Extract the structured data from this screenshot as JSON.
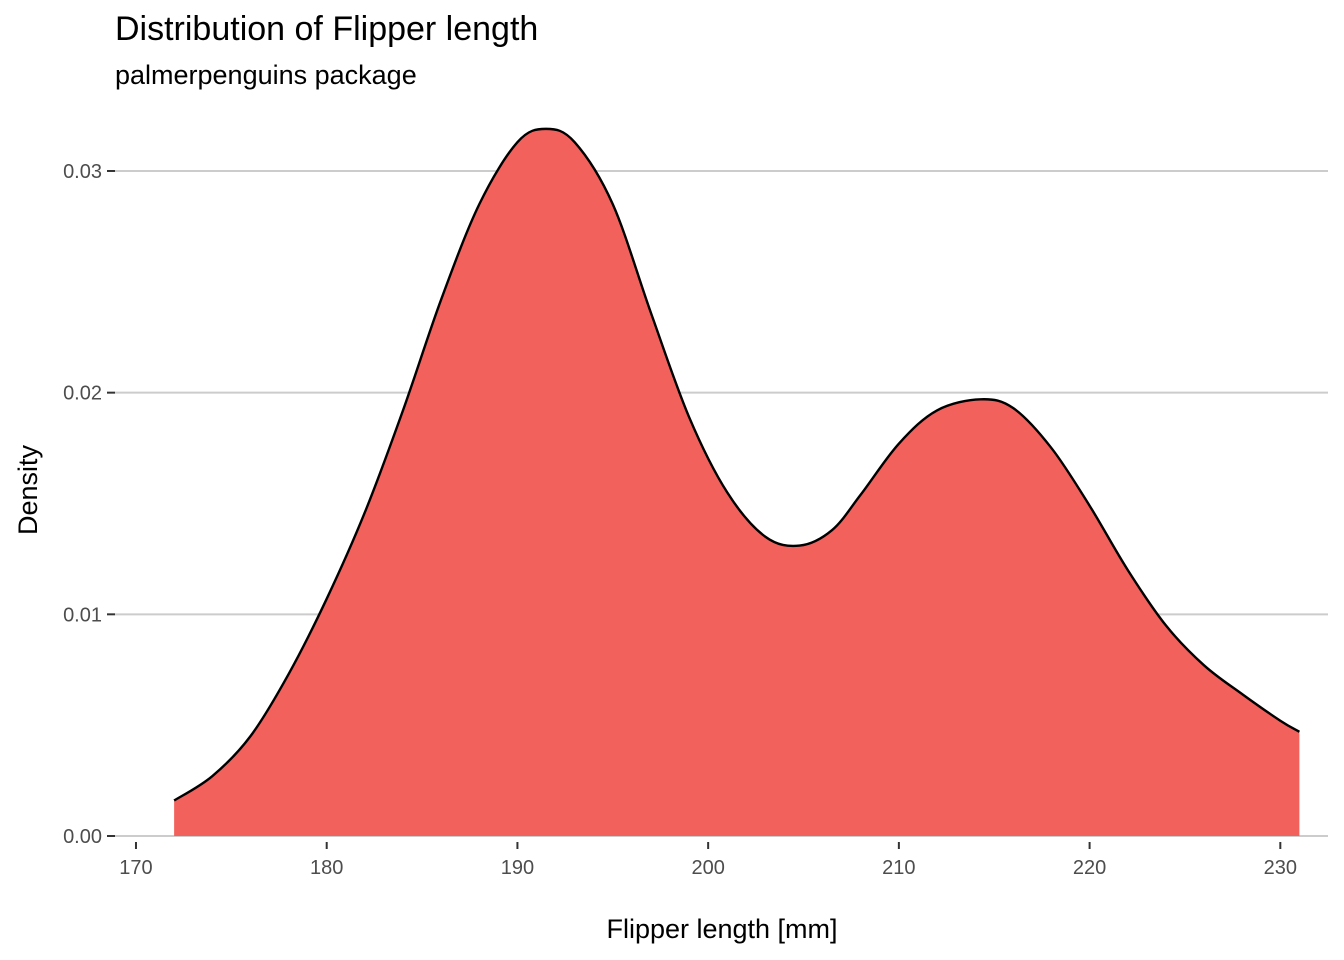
{
  "chart_data": {
    "type": "area",
    "title": "Distribution of Flipper length",
    "subtitle": "palmerpenguins package",
    "xlabel": "Flipper length [mm]",
    "ylabel": "Density",
    "xlim": [
      168.9,
      232.5
    ],
    "ylim": [
      0,
      0.0323
    ],
    "xticks": [
      170,
      180,
      190,
      200,
      210,
      220,
      230
    ],
    "yticks": [
      0.0,
      0.01,
      0.02,
      0.03
    ],
    "ytick_labels": [
      "0.00",
      "0.01",
      "0.02",
      "0.03"
    ],
    "grid": {
      "horizontal": true,
      "vertical": false
    },
    "fill_color": "#F3615D",
    "line_color": "#000000",
    "x": [
      172,
      174,
      176,
      178,
      180,
      182,
      184,
      186,
      188,
      190,
      191.5,
      193,
      195,
      197,
      199,
      201,
      203,
      204.8,
      206.5,
      208,
      210,
      212,
      214.3,
      216,
      218,
      220,
      222,
      224,
      226,
      228,
      230,
      231
    ],
    "y": [
      0.0016,
      0.0027,
      0.0045,
      0.0073,
      0.0107,
      0.0146,
      0.0192,
      0.0242,
      0.0285,
      0.0313,
      0.0319,
      0.0313,
      0.0285,
      0.0236,
      0.0189,
      0.0155,
      0.0135,
      0.0131,
      0.0138,
      0.0154,
      0.0177,
      0.0192,
      0.0197,
      0.0193,
      0.0175,
      0.0149,
      0.012,
      0.0095,
      0.0077,
      0.0064,
      0.0052,
      0.0047
    ]
  }
}
